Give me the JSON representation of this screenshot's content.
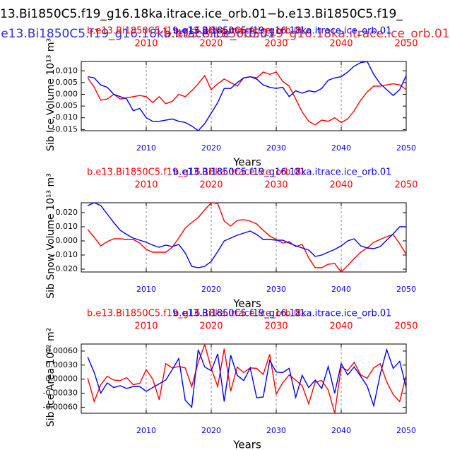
{
  "title": "13.Bi1850C5.f19_g16.18ka.itrace.ice_orb.01−b.e13.Bi1850C5.f19_",
  "subtitles": [
    {
      "text": "b.e13.Bi1850C5.f19_g16.18ka.itrace.ice_orb.01",
      "color": "#3030e0"
    },
    {
      "text": "b.e13.Bi1850C5.f19_g16.18ka.itrace.ice_orb.01",
      "color": "#e03030"
    }
  ],
  "chart_data": [
    {
      "type": "line",
      "ylabel": "Sib Ice Volume 10¹³ m³",
      "xlabel": "Years",
      "xlim": [
        2000,
        2050
      ],
      "ylim": [
        -0.0155,
        0.014
      ],
      "xticks": [
        2010,
        2020,
        2030,
        2040,
        2050
      ],
      "x2ticks": [
        2010,
        2020,
        2030,
        2040,
        2050
      ],
      "xtick_color": "#0000ff",
      "x2tick_color": "#ff0000",
      "yticks": [
        {
          "value": 0.01,
          "label": "0.010"
        },
        0.005,
        {
          "value": 0,
          "label": "0.000"
        },
        -0.005,
        {
          "value": -0.01,
          "label": "-0.010"
        },
        -0.015
      ],
      "grid": true,
      "x": [
        2001,
        2002,
        2003,
        2004,
        2005,
        2006,
        2007,
        2008,
        2009,
        2010,
        2011,
        2012,
        2013,
        2014,
        2015,
        2016,
        2017,
        2018,
        2019,
        2020,
        2021,
        2022,
        2023,
        2024,
        2025,
        2026,
        2027,
        2028,
        2029,
        2030,
        2031,
        2032,
        2033,
        2034,
        2035,
        2036,
        2037,
        2038,
        2039,
        2040,
        2041,
        2042,
        2043,
        2044,
        2045,
        2046,
        2047,
        2048,
        2049,
        2050
      ],
      "series": [
        {
          "name": "b.e13.Bi1850C5.f19_g16.18ka.itrace.ice_orb.01",
          "color": "#ff0000",
          "values": [
            0.007,
            0.003,
            -0.0025,
            -0.002,
            0,
            -0.002,
            -0.0015,
            -0.001,
            -0.0005,
            -0.001,
            -0.0035,
            -0.001,
            -0.004,
            -0.003,
            0,
            -0.001,
            0.0015,
            0.0045,
            0.008,
            0.002,
            0.0045,
            0.0065,
            0.005,
            0.0035,
            0.007,
            0.0075,
            0.007,
            0.0095,
            0.0085,
            0.0095,
            0.0055,
            0.0035,
            -0.002,
            -0.0075,
            -0.0115,
            -0.013,
            -0.011,
            -0.0115,
            -0.01,
            -0.012,
            -0.0105,
            -0.007,
            -0.0025,
            0.001,
            0.0035,
            0.0035,
            0.004,
            0.0045,
            0.004,
            0.002
          ]
        },
        {
          "name": "b.e13.Bi1850C5.f19_g16.18ka.itrace.ice_orb.01",
          "color": "#0000ff",
          "values": [
            0.0075,
            0.007,
            0.004,
            0.003,
            0,
            -0.001,
            -0.002,
            -0.007,
            -0.006,
            -0.01,
            -0.0115,
            -0.0115,
            -0.011,
            -0.0105,
            -0.0115,
            -0.012,
            -0.0135,
            -0.0155,
            -0.0125,
            -0.008,
            -0.0035,
            0.0025,
            0.0025,
            0.005,
            0.007,
            0.0075,
            0.0065,
            0.004,
            0.003,
            0.0025,
            0.003,
            -0.001,
            0.0015,
            0.0005,
            0.0015,
            0.001,
            0.0025,
            0.006,
            0.007,
            0.0075,
            0.0095,
            0.012,
            0.0135,
            0.014,
            0.0085,
            0.0045,
            0.002,
            -0.0005,
            0.002,
            0.008
          ]
        }
      ]
    },
    {
      "type": "line",
      "ylabel": "Sib Snow Volume 10¹³ m³",
      "xlabel": "Years",
      "xlim": [
        2000,
        2050
      ],
      "ylim": [
        -0.022,
        0.027
      ],
      "xticks": [
        2010,
        2020,
        2030,
        2040,
        2050
      ],
      "x2ticks": [
        2010,
        2020,
        2030,
        2040,
        2050
      ],
      "xtick_color": "#0000ff",
      "x2tick_color": "#ff0000",
      "yticks": [
        {
          "value": 0.02,
          "label": "0.020"
        },
        {
          "value": 0.01,
          "label": "0.010"
        },
        {
          "value": 0,
          "label": "0.000"
        },
        {
          "value": -0.01,
          "label": "-0.010"
        },
        {
          "value": -0.02,
          "label": "-0.020"
        }
      ],
      "grid": true,
      "x": [
        2001,
        2002,
        2003,
        2004,
        2005,
        2006,
        2007,
        2008,
        2009,
        2010,
        2011,
        2012,
        2013,
        2014,
        2015,
        2016,
        2017,
        2018,
        2019,
        2020,
        2021,
        2022,
        2023,
        2024,
        2025,
        2026,
        2027,
        2028,
        2029,
        2030,
        2031,
        2032,
        2033,
        2034,
        2035,
        2036,
        2037,
        2038,
        2039,
        2040,
        2041,
        2042,
        2043,
        2044,
        2045,
        2046,
        2047,
        2048,
        2049,
        2050
      ],
      "series": [
        {
          "name": "b.e13.Bi1850C5.f19_g16.18ka.itrace.ice_orb.01",
          "color": "#ff0000",
          "values": [
            0.008,
            0.0025,
            -0.0035,
            -0.0005,
            0.0015,
            0.0015,
            0.001,
            0.001,
            -0.0015,
            -0.006,
            -0.008,
            -0.008,
            -0.008,
            -0.0045,
            0.002,
            0.009,
            0.013,
            0.0165,
            0.022,
            0.027,
            0.0265,
            0.014,
            0.0105,
            0.0145,
            0.015,
            0.014,
            0.012,
            0.0075,
            0.0035,
            0.001,
            -0.0015,
            -0.0005,
            -0.004,
            -0.0025,
            -0.012,
            -0.019,
            -0.019,
            -0.0165,
            -0.016,
            -0.022,
            -0.0175,
            -0.0125,
            -0.008,
            -0.005,
            -0.001,
            0.001,
            0.003,
            0.0045,
            -0.002,
            -0.0095
          ]
        },
        {
          "name": "b.e13.Bi1850C5.f19_g16.18ka.itrace.ice_orb.01",
          "color": "#0000ff",
          "values": [
            0.025,
            0.027,
            0.025,
            0.019,
            0.013,
            0.0075,
            0.0045,
            0.002,
            0.0005,
            -0.001,
            -0.003,
            -0.0045,
            -0.003,
            -0.004,
            -0.0025,
            -0.0085,
            -0.018,
            -0.019,
            -0.018,
            -0.0145,
            -0.0075,
            0,
            0.002,
            0.004,
            0.0055,
            0.007,
            0.0045,
            0.001,
            0.001,
            0.0005,
            0.0005,
            -0.0015,
            -0.0035,
            -0.005,
            -0.0065,
            -0.011,
            -0.01,
            -0.008,
            -0.006,
            -0.0035,
            0,
            0.0015,
            -0.0035,
            -0.005,
            -0.0055,
            -0.004,
            0.0005,
            0.005,
            0.01,
            0.01
          ]
        }
      ]
    },
    {
      "type": "line",
      "ylabel": "Sib Ice Area 10¹² m²",
      "xlabel": "Years",
      "xlim": [
        2000,
        2050
      ],
      "ylim": [
        -0.00073,
        0.00075
      ],
      "xticks": [
        2010,
        2020,
        2030,
        2040,
        2050
      ],
      "x2ticks": [
        2010,
        2020,
        2030,
        2040,
        2050
      ],
      "xtick_color": "#0000ff",
      "x2tick_color": "#ff0000",
      "yticks": [
        {
          "value": 0.0006,
          "label": "0.00060"
        },
        {
          "value": 0.0003,
          "label": "0.00030"
        },
        {
          "value": 0,
          "label": "0.00000"
        },
        {
          "value": -0.0003,
          "label": "-0.00030"
        },
        {
          "value": -0.0006,
          "label": "-0.00060"
        }
      ],
      "grid": true,
      "x": [
        2001,
        2002,
        2003,
        2004,
        2005,
        2006,
        2007,
        2008,
        2009,
        2010,
        2011,
        2012,
        2013,
        2014,
        2015,
        2016,
        2017,
        2018,
        2019,
        2020,
        2021,
        2022,
        2023,
        2024,
        2025,
        2026,
        2027,
        2028,
        2029,
        2030,
        2031,
        2032,
        2033,
        2034,
        2035,
        2036,
        2037,
        2038,
        2039,
        2040,
        2041,
        2042,
        2043,
        2044,
        2045,
        2046,
        2047,
        2048,
        2049,
        2050
      ],
      "series": [
        {
          "name": "b.e13.Bi1850C5.f19_g16.18ka.itrace.ice_orb.01",
          "color": "#ff0000",
          "values": [
            2e-05,
            -0.00048,
            -0.00012,
            6e-05,
            -2e-05,
            -3e-05,
            3e-05,
            -0.00012,
            -9e-05,
            0.0002,
            0,
            -0.00044,
            0.00033,
            0.00024,
            0.00027,
            0.00024,
            -0.00016,
            0.00036,
            0.00074,
            0.00023,
            -0.00016,
            0.00065,
            -0.00026,
            0.00026,
            0.00014,
            0.00024,
            0.00023,
            0.0001,
            0.00053,
            -0.00032,
            -8e-05,
            9e-05,
            -2e-05,
            -0.00014,
            -0.00053,
            -6e-05,
            -3e-05,
            -0.00023,
            -0.00073,
            0.00026,
            0.00018,
            0.00036,
            9e-05,
            2e-05,
            0.00024,
            0.00033,
            -6e-05,
            -0.00033,
            -0.00048,
            9e-05
          ]
        },
        {
          "name": "b.e13.Bi1850C5.f19_g16.18ka.itrace.ice_orb.01",
          "color": "#0000ff",
          "values": [
            0.00047,
            0.00014,
            -0.0003,
            -8e-05,
            -0.00018,
            -0.00014,
            -0.0002,
            -0.00016,
            -0.00016,
            -0.00026,
            -0.00018,
            -0.0001,
            -2e-05,
            0.0002,
            0.00044,
            -0.00045,
            -0.0006,
            0.00063,
            0.00026,
            0.00018,
            0.00054,
            -0.00048,
            0.00051,
            8e-05,
            -3e-05,
            0.00024,
            -0.0004,
            -0.00038,
            0.0004,
            0.00015,
            0.00014,
            0.00023,
            -0.00039,
            8e-05,
            -0.00018,
            -2e-05,
            -0.0002,
            0.00027,
            -0.0003,
            0.00033,
            9e-05,
            0.00026,
            6e-05,
            -0.00015,
            -0.00057,
            0.0001,
            0.00063,
            0.00023,
            0.00038,
            -0.00018
          ]
        }
      ]
    }
  ]
}
